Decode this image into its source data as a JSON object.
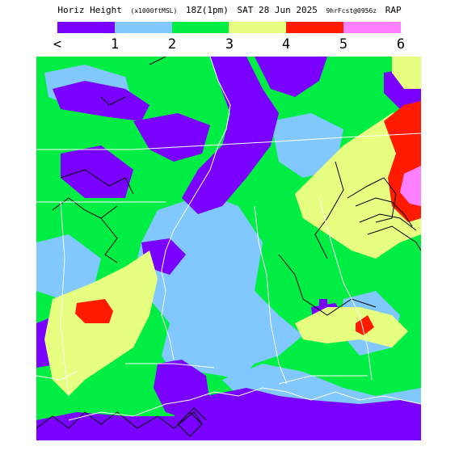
{
  "title": {
    "parameter": "Horiz Height",
    "units": "(x1000ftMSL)",
    "valid_time": "18Z(1pm)",
    "date": "SAT 28 Jun 2025",
    "forecast": "9hrFcst@0956z",
    "model": "RAP"
  },
  "legend": {
    "labels": [
      "<",
      "1",
      "2",
      "3",
      "4",
      "5",
      "6"
    ],
    "colors": [
      "#7a00ff",
      "#80c8ff",
      "#00ee44",
      "#e6ff80",
      "#ff1a00",
      "#ff80ff"
    ]
  },
  "map_colors": {
    "purple": "#7a00ff",
    "blue": "#80c8ff",
    "green": "#00ee44",
    "yellow": "#e6ff80",
    "red": "#ff1a00",
    "pink": "#ff80ff",
    "boundary": "#ffffff",
    "contour": "#000000"
  }
}
